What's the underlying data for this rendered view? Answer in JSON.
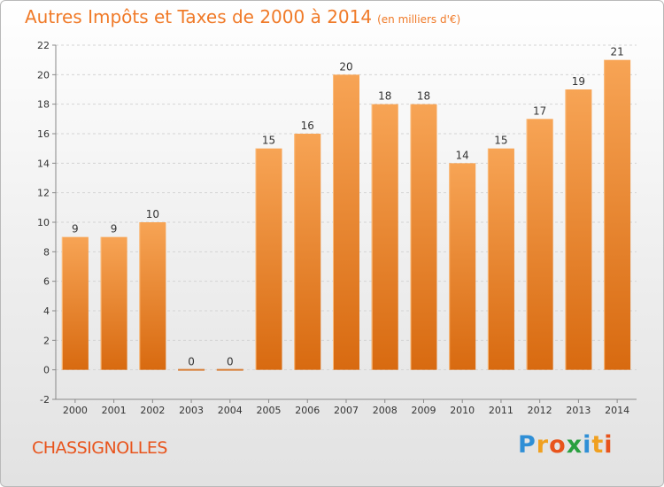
{
  "title": {
    "main": "Autres Impôts et Taxes de 2000 à 2014",
    "unit": "(en milliers d'€)"
  },
  "commune": "CHASSIGNOLLES",
  "logo": {
    "letters": [
      "P",
      "r",
      "o",
      "x",
      "i",
      "t",
      "i"
    ],
    "colors": [
      "#2f8fd6",
      "#f0a020",
      "#e8541c",
      "#2aa040",
      "#2f8fd6",
      "#f0a020",
      "#e8541c"
    ]
  },
  "colors": {
    "bar_light": "#f7a455",
    "bar_dark": "#d86a10",
    "zero_line": "#d8803a",
    "title": "#f07a28",
    "commune": "#e8541c"
  },
  "chart_data": {
    "type": "bar",
    "categories": [
      "2000",
      "2001",
      "2002",
      "2003",
      "2004",
      "2005",
      "2006",
      "2007",
      "2008",
      "2009",
      "2010",
      "2011",
      "2012",
      "2013",
      "2014"
    ],
    "values": [
      9,
      9,
      10,
      0,
      0,
      15,
      16,
      20,
      18,
      18,
      14,
      15,
      17,
      19,
      21
    ],
    "data_labels": [
      "9",
      "9",
      "10",
      "0",
      "0",
      "15",
      "16",
      "20",
      "18",
      "18",
      "14",
      "15",
      "17",
      "19",
      "21"
    ],
    "yticks": [
      "-2",
      "0",
      "2",
      "4",
      "6",
      "8",
      "10",
      "12",
      "14",
      "16",
      "18",
      "20",
      "22"
    ],
    "ylim": [
      -2,
      22
    ],
    "grid": true,
    "legend": "none"
  }
}
